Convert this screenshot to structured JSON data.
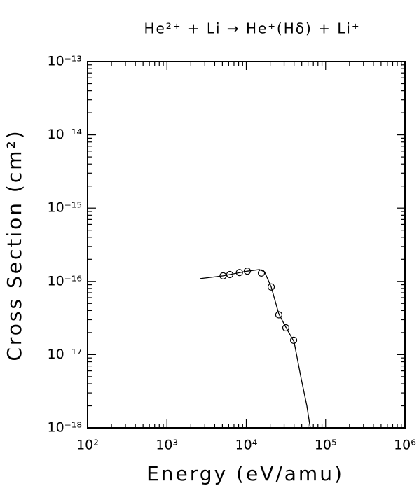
{
  "chart_data": {
    "type": "line",
    "title": "He²⁺ + Li → He⁺(Hδ) + Li⁺",
    "x_label": "Energy (eV/amu)",
    "y_label": "Cross Section (cm²)",
    "x_log": true,
    "y_log": true,
    "color": "#000000",
    "xlim": [
      100,
      1000000
    ],
    "xticks": [
      {
        "value": 100,
        "label": "10²"
      },
      {
        "value": 1000,
        "label": "10³"
      },
      {
        "value": 10000,
        "label": "10⁴"
      },
      {
        "value": 100000,
        "label": "10⁵"
      },
      {
        "value": 1000000,
        "label": "10⁶"
      }
    ],
    "ylim": [
      1e-18,
      1e-13
    ],
    "yticks": [
      {
        "value": 1e-18,
        "label": "10⁻¹⁸"
      },
      {
        "value": 1e-17,
        "label": "10⁻¹⁷"
      },
      {
        "value": 1e-16,
        "label": "10⁻¹⁶"
      },
      {
        "value": 1e-15,
        "label": "10⁻¹⁵"
      },
      {
        "value": 1e-14,
        "label": "10⁻¹⁴"
      },
      {
        "value": 1e-13,
        "label": "10⁻¹³"
      }
    ],
    "series": [
      {
        "style": "markers",
        "color": "#000000",
        "x": [
          5100,
          6200,
          8200,
          10300,
          15500,
          20600,
          25700,
          31500,
          39500
        ],
        "values": [
          1.19e-16,
          1.24e-16,
          1.32e-16,
          1.38e-16,
          1.3e-16,
          8.4e-17,
          3.5e-17,
          2.33e-17,
          1.57e-17
        ]
      },
      {
        "style": "line",
        "color": "#000000",
        "x": [
          2600,
          5100,
          10300,
          14600,
          17000,
          20600,
          25700,
          32000,
          40000,
          49000,
          58000,
          64000
        ],
        "values": [
          1.09e-16,
          1.19e-16,
          1.38e-16,
          1.45e-16,
          1.35e-16,
          8.4e-17,
          3.6e-17,
          2.3e-17,
          1.5e-17,
          4.8e-18,
          2e-18,
          1e-18
        ]
      }
    ]
  }
}
